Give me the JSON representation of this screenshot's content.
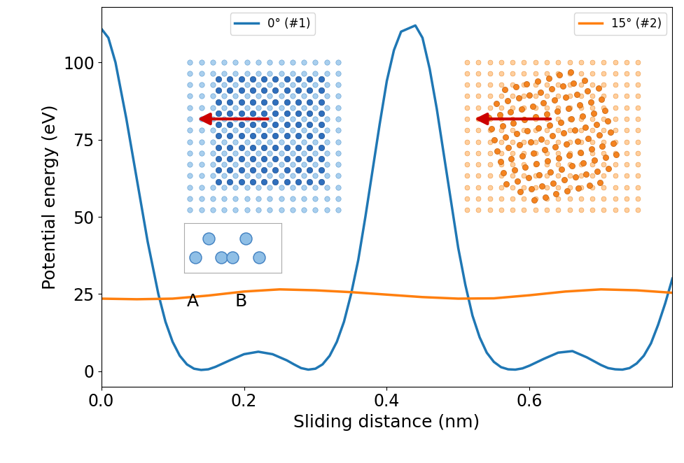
{
  "chart_data": {
    "type": "line",
    "x_label": "Sliding distance (nm)",
    "y_label": "Potential energy (eV)",
    "xlim": [
      0,
      0.8
    ],
    "ylim": [
      -5,
      118
    ],
    "xticks": [
      {
        "value": 0,
        "label": "0.0"
      },
      0.2,
      0.4,
      0.6
    ],
    "yticks": [
      0,
      25,
      50,
      75,
      100
    ],
    "legend": "upper right",
    "annotations": [
      "A",
      "B"
    ],
    "series": [
      {
        "name": "0° (#1)",
        "color": "#1f77b4",
        "x": [
          0.0,
          0.01,
          0.02,
          0.035,
          0.05,
          0.065,
          0.08,
          0.09,
          0.1,
          0.11,
          0.12,
          0.13,
          0.14,
          0.15,
          0.16,
          0.18,
          0.2,
          0.22,
          0.24,
          0.26,
          0.27,
          0.28,
          0.29,
          0.3,
          0.31,
          0.32,
          0.33,
          0.34,
          0.35,
          0.36,
          0.37,
          0.38,
          0.39,
          0.4,
          0.41,
          0.42,
          0.43,
          0.44,
          0.45,
          0.46,
          0.47,
          0.48,
          0.49,
          0.5,
          0.51,
          0.52,
          0.53,
          0.54,
          0.55,
          0.56,
          0.57,
          0.58,
          0.59,
          0.6,
          0.62,
          0.64,
          0.66,
          0.68,
          0.7,
          0.71,
          0.72,
          0.73,
          0.74,
          0.75,
          0.76,
          0.77,
          0.78,
          0.79,
          0.8
        ],
        "values": [
          111,
          108,
          100,
          82,
          62,
          42,
          25,
          16,
          9.5,
          5,
          2.2,
          0.8,
          0.4,
          0.6,
          1.4,
          3.5,
          5.5,
          6.3,
          5.5,
          3.5,
          2.2,
          1.0,
          0.5,
          0.8,
          2.2,
          5,
          9.5,
          16,
          25,
          36,
          50,
          65,
          80,
          94,
          104,
          110,
          111,
          112,
          108,
          98,
          85,
          70,
          55,
          40,
          28,
          18,
          11,
          6,
          3,
          1.3,
          0.6,
          0.5,
          0.9,
          1.8,
          4,
          6,
          6.5,
          4.5,
          2,
          1,
          0.6,
          0.5,
          1,
          2.5,
          5,
          9,
          15,
          22,
          30
        ]
      },
      {
        "name": "15° (#2)",
        "color": "#ff7f0e",
        "x": [
          0.0,
          0.05,
          0.1,
          0.15,
          0.2,
          0.25,
          0.3,
          0.35,
          0.4,
          0.45,
          0.5,
          0.55,
          0.6,
          0.65,
          0.7,
          0.75,
          0.8
        ],
        "values": [
          23.5,
          23.3,
          23.5,
          24.5,
          25.8,
          26.5,
          26.2,
          25.6,
          24.8,
          24.0,
          23.5,
          23.6,
          24.6,
          25.8,
          26.5,
          26.2,
          25.4
        ]
      }
    ]
  }
}
